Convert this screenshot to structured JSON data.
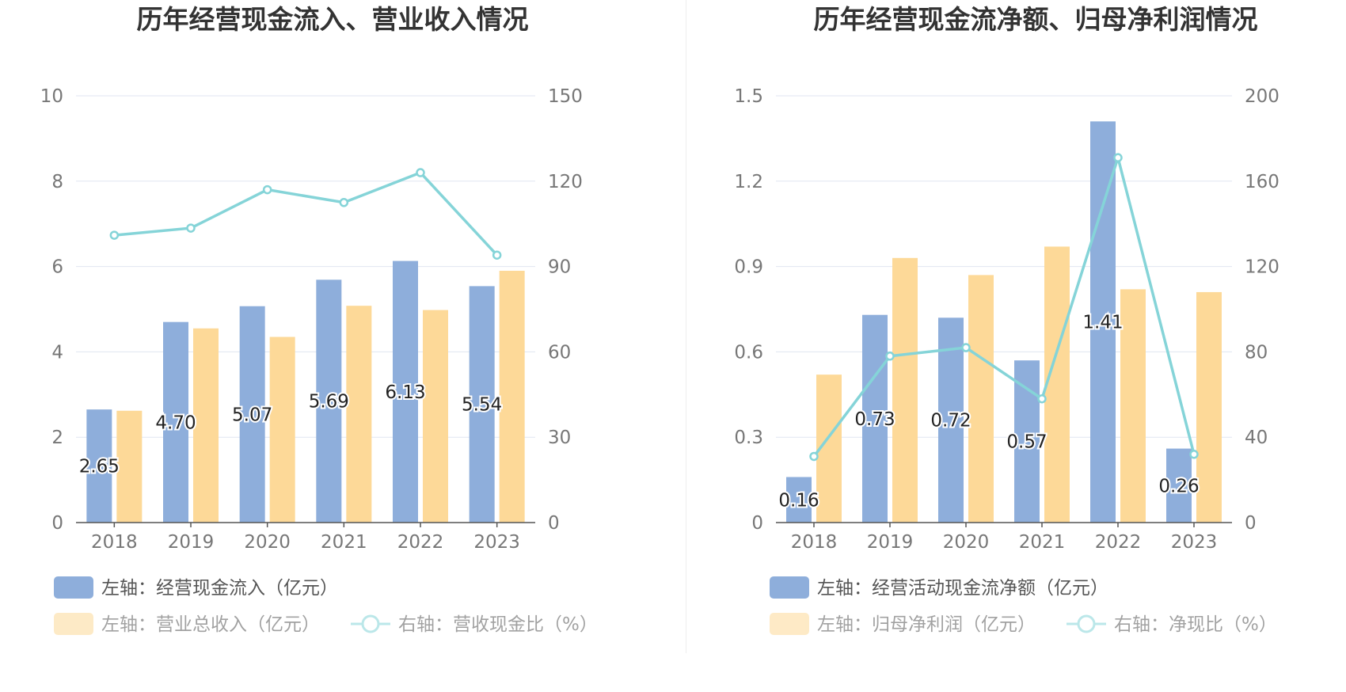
{
  "colors": {
    "bar_primary": "#8eaedb",
    "bar_secondary": "#fdd998",
    "line": "#85d4d8",
    "grid": "#e0e6f1",
    "axis": "#555555"
  },
  "chart_data": [
    {
      "type": "bar",
      "title": "历年经营现金流入、营业收入情况",
      "categories": [
        "2018",
        "2019",
        "2020",
        "2021",
        "2022",
        "2023"
      ],
      "left_axis": {
        "ylim": [
          0,
          10
        ],
        "ticks": [
          "0",
          "2",
          "4",
          "6",
          "8",
          "10"
        ]
      },
      "right_axis": {
        "ylim": [
          0,
          150
        ],
        "ticks": [
          "0",
          "30",
          "60",
          "90",
          "120",
          "150"
        ]
      },
      "series": [
        {
          "name": "左轴：经营现金流入（亿元）",
          "type": "bar",
          "axis": "left",
          "values": [
            2.65,
            4.7,
            5.07,
            5.69,
            6.13,
            5.54
          ],
          "labels": [
            "2.65",
            "4.70",
            "5.07",
            "5.69",
            "6.13",
            "5.54"
          ],
          "color": "#8eaedb",
          "legend_faded": false
        },
        {
          "name": "左轴：营业总收入（亿元）",
          "type": "bar",
          "axis": "left",
          "values": [
            2.62,
            4.55,
            4.35,
            5.08,
            4.98,
            5.9
          ],
          "color": "#fdd998",
          "legend_faded": true
        },
        {
          "name": "右轴：营收现金比（%）",
          "type": "line",
          "axis": "right",
          "values": [
            101.0,
            103.5,
            117.0,
            112.5,
            123.0,
            94.0
          ],
          "color": "#85d4d8",
          "legend_faded": true
        }
      ]
    },
    {
      "type": "bar",
      "title": "历年经营现金流净额、归母净利润情况",
      "categories": [
        "2018",
        "2019",
        "2020",
        "2021",
        "2022",
        "2023"
      ],
      "left_axis": {
        "ylim": [
          0,
          1.5
        ],
        "ticks": [
          "0",
          "0.3",
          "0.6",
          "0.9",
          "1.2",
          "1.5"
        ]
      },
      "right_axis": {
        "ylim": [
          0,
          200
        ],
        "ticks": [
          "0",
          "40",
          "80",
          "120",
          "160",
          "200"
        ]
      },
      "series": [
        {
          "name": "左轴：经营活动现金流净额（亿元）",
          "type": "bar",
          "axis": "left",
          "values": [
            0.16,
            0.73,
            0.72,
            0.57,
            1.41,
            0.26
          ],
          "labels": [
            "0.16",
            "0.73",
            "0.72",
            "0.57",
            "1.41",
            "0.26"
          ],
          "color": "#8eaedb",
          "legend_faded": false
        },
        {
          "name": "左轴：归母净利润（亿元）",
          "type": "bar",
          "axis": "left",
          "values": [
            0.52,
            0.93,
            0.87,
            0.97,
            0.82,
            0.81
          ],
          "color": "#fdd998",
          "legend_faded": true
        },
        {
          "name": "右轴：净现比（%）",
          "type": "line",
          "axis": "right",
          "values": [
            31.0,
            78.0,
            82.0,
            58.0,
            171.0,
            32.0
          ],
          "color": "#85d4d8",
          "legend_faded": true
        }
      ]
    }
  ]
}
